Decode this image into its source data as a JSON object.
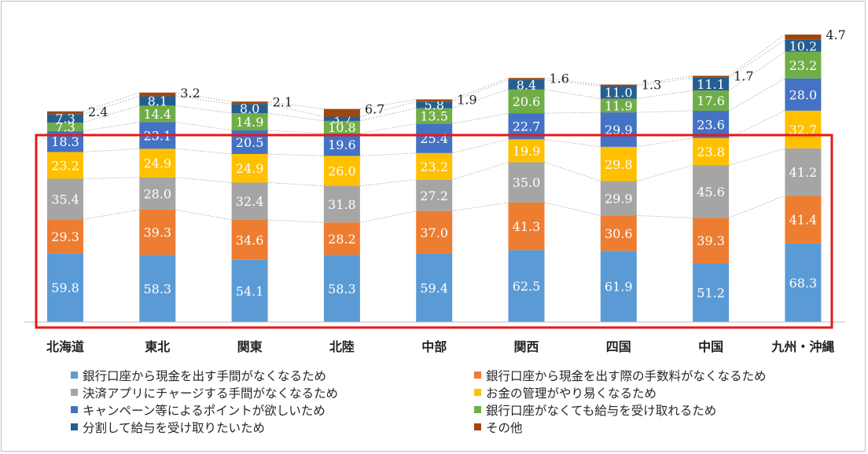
{
  "chart_data": {
    "type": "stacked-bar",
    "title": "",
    "xlabel": "",
    "ylabel": "",
    "categories": [
      "北海道",
      "東北",
      "関東",
      "北陸",
      "中部",
      "関西",
      "四国",
      "中国",
      "九州・沖縄"
    ],
    "series": [
      {
        "name": "銀行口座から現金を出す手間がなくなるため",
        "color": "#5b9bd5",
        "values": [
          59.8,
          58.3,
          54.1,
          58.3,
          59.4,
          62.5,
          61.9,
          51.2,
          68.3
        ]
      },
      {
        "name": "銀行口座から現金を出す際の手数料がなくなるため",
        "color": "#ed7d31",
        "values": [
          29.3,
          39.3,
          34.6,
          28.2,
          37.0,
          41.3,
          30.6,
          39.3,
          41.4
        ]
      },
      {
        "name": "決済アプリにチャージする手間がなくなるため",
        "color": "#a5a5a5",
        "values": [
          35.4,
          28.0,
          32.4,
          31.8,
          27.2,
          35.0,
          29.9,
          45.6,
          41.2
        ]
      },
      {
        "name": "お金の管理がやり易くなるため",
        "color": "#ffc000",
        "values": [
          23.2,
          24.9,
          24.9,
          26.0,
          23.2,
          19.9,
          29.8,
          23.8,
          32.7
        ]
      },
      {
        "name": "キャンペーン等によるポイントが欲しいため",
        "color": "#4472c4",
        "values": [
          18.3,
          23.1,
          20.5,
          19.6,
          25.4,
          22.7,
          29.9,
          23.6,
          28.0
        ]
      },
      {
        "name": "銀行口座がなくても給与を受け取れるため",
        "color": "#70ad47",
        "values": [
          7.3,
          14.4,
          14.9,
          10.8,
          13.5,
          20.6,
          11.9,
          17.6,
          23.2
        ]
      },
      {
        "name": "分割して給与を受け取りたいため",
        "color": "#255e91",
        "values": [
          7.3,
          8.1,
          8.0,
          3.7,
          5.8,
          8.4,
          11.0,
          11.1,
          10.2
        ]
      },
      {
        "name": "その他",
        "color": "#9e480e",
        "values": [
          2.4,
          3.2,
          2.1,
          6.7,
          1.9,
          1.6,
          1.3,
          1.7,
          4.7
        ]
      }
    ],
    "legend_placement": "bottom",
    "grid": false,
    "highlight_box_color": "#e31a1c"
  }
}
